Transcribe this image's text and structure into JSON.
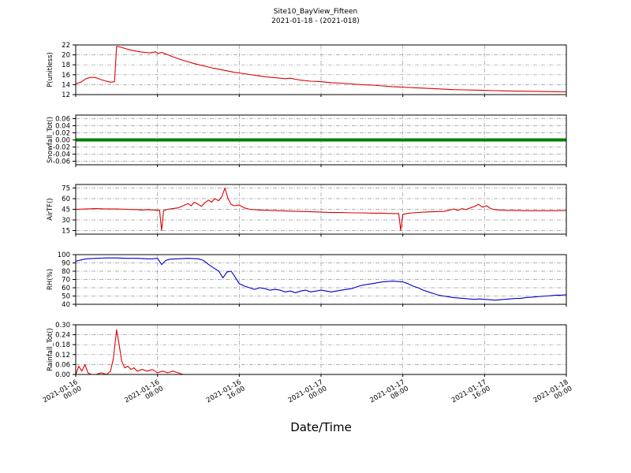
{
  "title": {
    "line1": "Site10_BayView_Fifteen",
    "line2": "2021-01-18 - (2021-018)"
  },
  "xlabel": "Date/Time",
  "style": {
    "grid_color": "#999999",
    "axis_color": "#000000",
    "background": "#ffffff"
  },
  "x_axis": {
    "range_hours": [
      0,
      48
    ],
    "tick_hours": [
      0,
      8,
      16,
      24,
      32,
      40,
      48
    ],
    "tick_labels": [
      {
        "date": "2021-01-16",
        "time": "00:00"
      },
      {
        "date": "2021-01-16",
        "time": "08:00"
      },
      {
        "date": "2021-01-16",
        "time": "16:00"
      },
      {
        "date": "2021-01-17",
        "time": "00:00"
      },
      {
        "date": "2021-01-17",
        "time": "08:00"
      },
      {
        "date": "2021-01-17",
        "time": "16:00"
      },
      {
        "date": "2021-01-18",
        "time": "00:00"
      }
    ]
  },
  "chart_data": [
    {
      "type": "line",
      "ylabel": "P(unitless)",
      "color": "#dd0000",
      "line_width": 1.1,
      "ylim": [
        12,
        22
      ],
      "ytick_values": [
        12,
        14,
        16,
        18,
        20,
        22
      ],
      "ytick_labels": [
        "12",
        "14",
        "16",
        "18",
        "20",
        "22"
      ],
      "x": [
        0,
        0.5,
        1,
        1.5,
        2,
        2.5,
        3,
        3.4,
        3.8,
        4,
        4.3,
        4.8,
        5.3,
        5.8,
        6.3,
        6.8,
        7.3,
        7.8,
        8.1,
        8.4,
        8.8,
        9.5,
        10.5,
        11.5,
        12.5,
        13.5,
        14.5,
        15.5,
        16.5,
        17.5,
        18.5,
        19.5,
        20.5,
        21,
        21.5,
        22,
        23,
        24,
        25,
        26,
        27,
        28,
        29,
        30,
        31,
        32,
        33,
        34,
        35,
        36,
        37,
        38,
        39,
        40,
        41,
        42,
        43,
        44,
        45,
        46,
        47,
        48
      ],
      "y": [
        14.2,
        14.5,
        15.2,
        15.5,
        15.4,
        15.0,
        14.7,
        14.5,
        14.6,
        21.7,
        21.6,
        21.3,
        21.0,
        20.8,
        20.6,
        20.5,
        20.4,
        20.6,
        20.3,
        20.5,
        20.2,
        19.6,
        18.9,
        18.3,
        17.8,
        17.3,
        16.9,
        16.5,
        16.2,
        15.9,
        15.6,
        15.4,
        15.2,
        15.3,
        15.1,
        14.9,
        14.7,
        14.6,
        14.4,
        14.3,
        14.15,
        14.0,
        13.9,
        13.75,
        13.6,
        13.5,
        13.4,
        13.3,
        13.2,
        13.1,
        13.0,
        12.95,
        12.9,
        12.85,
        12.8,
        12.75,
        12.7,
        12.68,
        12.65,
        12.6,
        12.58,
        12.55
      ]
    },
    {
      "type": "line",
      "ylabel": "Snowfall_Tot()",
      "color": "#008000",
      "line_width": 4,
      "ylim": [
        -0.07,
        0.07
      ],
      "ytick_values": [
        -0.06,
        -0.04,
        -0.02,
        0,
        0.02,
        0.04,
        0.06
      ],
      "ytick_labels": [
        "-0.06",
        "-0.04",
        "-0.02",
        "0.00",
        "0.02",
        "0.04",
        "0.06"
      ],
      "x": [
        0,
        48
      ],
      "y": [
        0,
        0
      ]
    },
    {
      "type": "line",
      "ylabel": "AirTF()",
      "color": "#dd0000",
      "line_width": 1.1,
      "ylim": [
        10,
        80
      ],
      "ytick_values": [
        15,
        30,
        45,
        60,
        75
      ],
      "ytick_labels": [
        "15",
        "30",
        "45",
        "60",
        "75"
      ],
      "x": [
        0,
        1,
        2,
        3,
        4,
        5,
        6,
        6.5,
        7,
        7.6,
        8.0,
        8.2,
        8.4,
        8.6,
        9,
        9.5,
        10,
        10.5,
        11,
        11.3,
        11.6,
        12,
        12.3,
        12.6,
        13,
        13.3,
        13.6,
        14,
        14.3,
        14.6,
        14.9,
        15.2,
        15.5,
        16,
        16.5,
        17,
        18,
        19,
        20,
        21,
        22,
        23,
        24,
        25,
        26,
        27,
        28,
        29,
        30,
        31,
        31.6,
        31.8,
        32,
        32.2,
        32.6,
        33,
        34,
        35,
        36,
        36.5,
        37,
        37.4,
        37.8,
        38.2,
        38.6,
        39,
        39.4,
        39.8,
        40.2,
        40.6,
        41,
        41.5,
        42,
        43,
        44,
        45,
        46,
        47,
        48
      ],
      "y": [
        45,
        45.5,
        46,
        45.5,
        45.5,
        45,
        44.5,
        44,
        44.5,
        44,
        43.5,
        44,
        15,
        43,
        45,
        46,
        47,
        50,
        53,
        50,
        55,
        52,
        49,
        54,
        58,
        55,
        60,
        57,
        63,
        75,
        60,
        52,
        50,
        51,
        47,
        45,
        44,
        43.5,
        43,
        42.5,
        42,
        41.5,
        41,
        40.5,
        40.5,
        40,
        40,
        39.5,
        39.5,
        39,
        39,
        15,
        38,
        38.5,
        39.5,
        40,
        41,
        41.5,
        42,
        43.5,
        45.5,
        43.5,
        46,
        44.5,
        47,
        49,
        52,
        48,
        50,
        46,
        44.5,
        44,
        43.5,
        43.5,
        43,
        43,
        43,
        43,
        43.5
      ]
    },
    {
      "type": "line",
      "ylabel": "RH(%)",
      "color": "#0000cc",
      "line_width": 1.1,
      "ylim": [
        40,
        100
      ],
      "ytick_values": [
        40,
        50,
        60,
        70,
        80,
        90,
        100
      ],
      "ytick_labels": [
        "40",
        "50",
        "60",
        "70",
        "80",
        "90",
        "100"
      ],
      "x": [
        0,
        0.5,
        1,
        2,
        3,
        4,
        5,
        6,
        7,
        7.5,
        8,
        8.4,
        8.8,
        9.2,
        10,
        11,
        12,
        12.5,
        13,
        13.5,
        14,
        14.4,
        14.8,
        15.2,
        15.6,
        16,
        16.5,
        17,
        17.5,
        18,
        18.5,
        19,
        19.5,
        20,
        20.5,
        21,
        21.5,
        22,
        22.5,
        23,
        23.5,
        24,
        24.5,
        25,
        25.5,
        26,
        26.5,
        27,
        27.5,
        28,
        28.5,
        29,
        29.5,
        30,
        30.5,
        31,
        31.5,
        32,
        32.5,
        33,
        33.5,
        34,
        34.5,
        35,
        35.5,
        36,
        36.5,
        37,
        37.5,
        38,
        38.5,
        39,
        39.5,
        40,
        40.5,
        41,
        41.5,
        42,
        42.5,
        43,
        43.5,
        44,
        44.5,
        45,
        45.5,
        46,
        46.5,
        47,
        47.5,
        48
      ],
      "y": [
        92,
        93.5,
        95,
        95.5,
        96,
        96,
        95.5,
        95.5,
        95,
        95,
        95.5,
        88,
        93,
        94.5,
        95,
        95.5,
        95,
        93,
        88,
        84,
        80,
        72,
        79,
        80,
        73,
        65,
        62,
        60,
        58,
        60,
        59,
        57,
        58,
        57,
        55,
        56,
        54,
        56,
        57,
        55,
        56,
        57,
        56,
        55,
        56,
        57,
        58,
        59,
        61,
        63,
        64,
        65,
        66,
        67,
        67.5,
        68,
        67.5,
        67,
        65,
        62,
        60,
        57,
        55,
        53,
        51,
        50,
        49,
        48,
        47.5,
        47,
        46.5,
        46,
        46.5,
        46,
        45.5,
        45,
        45.5,
        46,
        46.5,
        47,
        47,
        48,
        48.5,
        49,
        49.5,
        50,
        50.5,
        51,
        51,
        51.5
      ]
    },
    {
      "type": "line",
      "ylabel": "Rainfall_Tot()",
      "color": "#dd0000",
      "line_width": 1.1,
      "ylim": [
        0,
        0.3
      ],
      "ytick_values": [
        0,
        0.06,
        0.12,
        0.18,
        0.24,
        0.3
      ],
      "ytick_labels": [
        "0.00",
        "0.06",
        "0.12",
        "0.18",
        "0.24",
        "0.30"
      ],
      "x": [
        0,
        0.3,
        0.6,
        0.9,
        1.2,
        1.5,
        2,
        2.5,
        3,
        3.4,
        3.7,
        4,
        4.2,
        4.5,
        4.8,
        5.1,
        5.4,
        5.7,
        6,
        6.5,
        7,
        7.5,
        8,
        8.5,
        9,
        9.5,
        10,
        10.5,
        11,
        12,
        14,
        16,
        20,
        24,
        28,
        32,
        36,
        40,
        44,
        48
      ],
      "y": [
        0,
        0.05,
        0.02,
        0.06,
        0.01,
        0,
        0,
        0.01,
        0,
        0.02,
        0.1,
        0.27,
        0.2,
        0.08,
        0.04,
        0.05,
        0.03,
        0.04,
        0.02,
        0.03,
        0.02,
        0.03,
        0.01,
        0.02,
        0.01,
        0.02,
        0.01,
        0,
        0,
        0,
        0,
        0,
        0,
        0,
        0,
        0,
        0,
        0,
        0,
        0
      ]
    }
  ]
}
